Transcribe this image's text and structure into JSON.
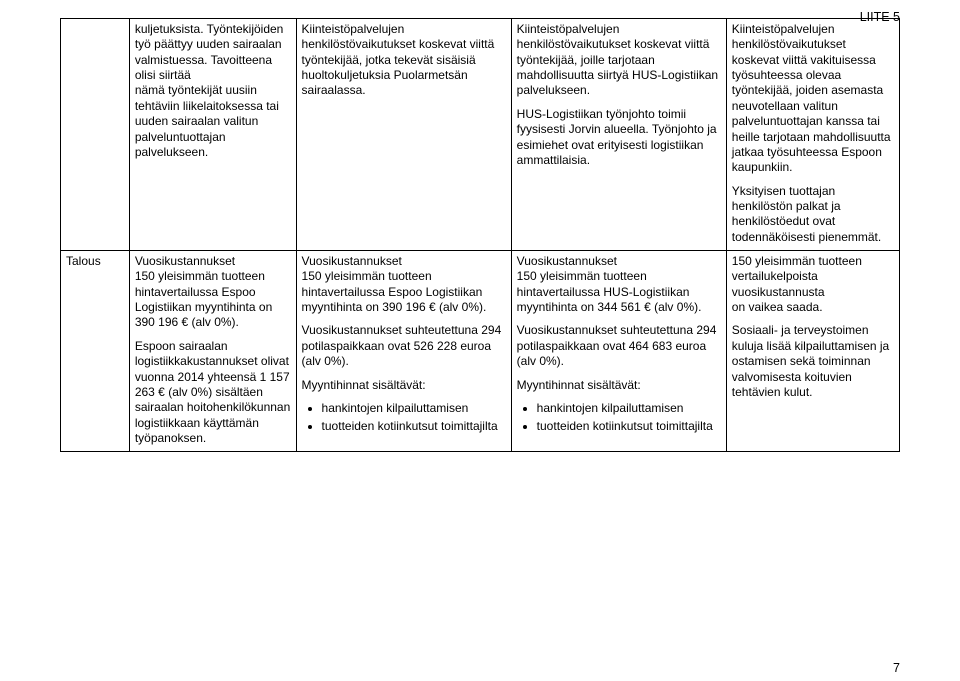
{
  "header": {
    "liite": "LIITE 5"
  },
  "pageNumber": "7",
  "row1": {
    "c1": "kuljetuksista. Työntekijöiden työ päättyy uuden sairaalan valmistuessa. Tavoitteena olisi siirtää\nnämä työntekijät uusiin tehtäviin liikelaitoksessa tai uuden sairaalan valitun palveluntuottajan palvelukseen.",
    "c2": "Kiinteistöpalvelujen henkilöstövaikutukset koskevat viittä työntekijää, jotka tekevät sisäisiä huoltokuljetuksia Puolarmetsän sairaalassa.",
    "c3_p1": "Kiinteistöpalvelujen henkilöstövaikutukset koskevat viittä työntekijää, joille tarjotaan mahdollisuutta siirtyä HUS-Logistiikan palvelukseen.",
    "c3_p2": "HUS-Logistiikan työnjohto toimii fyysisesti Jorvin alueella. Työnjohto ja esimiehet ovat erityisesti logistiikan ammattilaisia.",
    "c4_p1": "Kiinteistöpalvelujen henkilöstövaikutukset koskevat viittä vakituisessa työsuhteessa olevaa työntekijää, joiden asemasta neuvotellaan valitun palveluntuottajan kanssa tai heille tarjotaan mahdollisuutta jatkaa työsuhteessa Espoon kaupunkiin.",
    "c4_p2": "Yksityisen tuottajan henkilöstön palkat ja henkilöstöedut ovat todennäköisesti pienemmät."
  },
  "row2": {
    "c0": "Talous",
    "c1_p1": "Vuosikustannukset\n150 yleisimmän tuotteen hintavertailussa Espoo Logistiikan myyntihinta on 390 196 € (alv 0%).",
    "c1_p2": "Espoon sairaalan logistiikkakustannukset olivat vuonna 2014 yhteensä 1 157 263 € (alv 0%) sisältäen sairaalan hoitohenkilökunnan logistiikkaan käyttämän työpanoksen.",
    "c2_p1": "Vuosikustannukset\n150 yleisimmän tuotteen hintavertailussa Espoo Logistiikan myyntihinta on 390 196 € (alv 0%).",
    "c2_p2": "Vuosikustannukset suhteutettuna 294 potilaspaikkaan ovat 526 228 euroa (alv 0%).",
    "c2_p3": "Myyntihinnat sisältävät:",
    "c2_b1": "hankintojen kilpailuttamisen",
    "c2_b2": "tuotteiden kotiinkutsut toimittajilta",
    "c3_p1": "Vuosikustannukset\n150 yleisimmän tuotteen hintavertailussa HUS-Logistiikan myyntihinta on 344 561 € (alv 0%).",
    "c3_p2": "Vuosikustannukset suhteutettuna 294 potilaspaikkaan ovat 464 683 euroa (alv 0%).",
    "c3_p3": "Myyntihinnat sisältävät:",
    "c3_b1": "hankintojen kilpailuttamisen",
    "c3_b2": "tuotteiden kotiinkutsut toimittajilta",
    "c4_p1": "150 yleisimmän tuotteen vertailukelpoista vuosikustannusta\non vaikea saada.",
    "c4_p2": "Sosiaali- ja terveystoimen kuluja lisää kilpailuttamisen ja ostamisen sekä toiminnan valvomisesta koituvien tehtävien kulut."
  },
  "style": {
    "fontFamily": "Arial",
    "fontSizePt": 9,
    "headerFontSizePt": 9,
    "textColor": "#000000",
    "borderColor": "#000000",
    "backgroundColor": "#ffffff",
    "pageWidthPx": 960,
    "pageHeightPx": 681
  }
}
